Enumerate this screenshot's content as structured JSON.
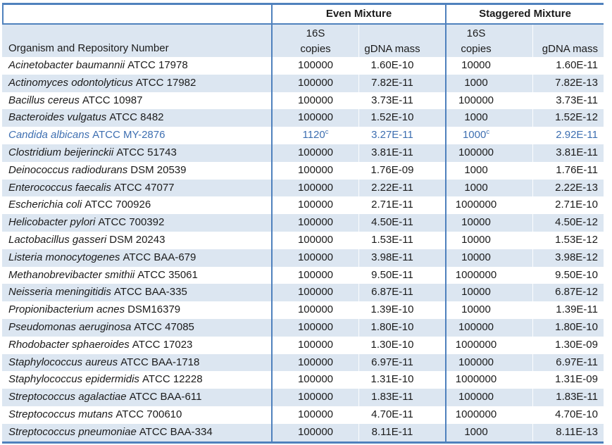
{
  "table": {
    "groups": [
      {
        "label": "Even Mixture"
      },
      {
        "label": "Staggered Mixture"
      }
    ],
    "subheaders": {
      "organism": "Organism and Repository Number",
      "copies_top": "16S",
      "copies_bottom": "copies",
      "gdna": "gDNA mass"
    },
    "colors": {
      "border_blue": "#4F81BD",
      "stripe_blue": "#DCE6F1",
      "highlight_text_blue": "#3E6FB1"
    },
    "rows": [
      {
        "name": "Acinetobacter baumannii",
        "id": "ATCC 17978",
        "even_copies": "100000",
        "even_gdna": "1.60E-10",
        "stag_copies": "10000",
        "stag_gdna": "1.60E-11"
      },
      {
        "name": "Actinomyces odontolyticus",
        "id": "ATCC 17982",
        "even_copies": "100000",
        "even_gdna": "7.82E-11",
        "stag_copies": "1000",
        "stag_gdna": "7.82E-13"
      },
      {
        "name": "Bacillus cereus",
        "id": "ATCC 10987",
        "even_copies": "100000",
        "even_gdna": "3.73E-11",
        "stag_copies": "100000",
        "stag_gdna": "3.73E-11"
      },
      {
        "name": "Bacteroides vulgatus",
        "id": "ATCC 8482",
        "even_copies": "100000",
        "even_gdna": "1.52E-10",
        "stag_copies": "1000",
        "stag_gdna": "1.52E-12"
      },
      {
        "name": "Candida albicans",
        "id": "ATCC MY-2876",
        "even_copies": "1120",
        "even_copies_note": "c",
        "even_gdna": "3.27E-11",
        "stag_copies": "1000",
        "stag_copies_note": "c",
        "stag_gdna": "2.92E-11",
        "highlight": true
      },
      {
        "name": "Clostridium beijerinckii",
        "id": "ATCC 51743",
        "even_copies": "100000",
        "even_gdna": "3.81E-11",
        "stag_copies": "100000",
        "stag_gdna": "3.81E-11"
      },
      {
        "name": "Deinococcus radiodurans",
        "id": "DSM 20539",
        "even_copies": "100000",
        "even_gdna": "1.76E-09",
        "stag_copies": "1000",
        "stag_gdna": "1.76E-11"
      },
      {
        "name": "Enterococcus faecalis",
        "id": "ATCC 47077",
        "even_copies": "100000",
        "even_gdna": "2.22E-11",
        "stag_copies": "1000",
        "stag_gdna": "2.22E-13"
      },
      {
        "name": "Escherichia coli",
        "id": "ATCC 700926",
        "even_copies": "100000",
        "even_gdna": "2.71E-11",
        "stag_copies": "1000000",
        "stag_gdna": "2.71E-10"
      },
      {
        "name": "Helicobacter pylori",
        "id": "ATCC 700392",
        "even_copies": "100000",
        "even_gdna": "4.50E-11",
        "stag_copies": "10000",
        "stag_gdna": "4.50E-12"
      },
      {
        "name": "Lactobacillus gasseri",
        "id": "DSM 20243",
        "even_copies": "100000",
        "even_gdna": "1.53E-11",
        "stag_copies": "10000",
        "stag_gdna": "1.53E-12"
      },
      {
        "name": "Listeria monocytogenes",
        "id": "ATCC BAA-679",
        "even_copies": "100000",
        "even_gdna": "3.98E-11",
        "stag_copies": "10000",
        "stag_gdna": "3.98E-12"
      },
      {
        "name": "Methanobrevibacter smithii",
        "id": "ATCC 35061",
        "even_copies": "100000",
        "even_gdna": "9.50E-11",
        "stag_copies": "1000000",
        "stag_gdna": "9.50E-10"
      },
      {
        "name": "Neisseria meningitidis",
        "id": "ATCC BAA-335",
        "even_copies": "100000",
        "even_gdna": "6.87E-11",
        "stag_copies": "10000",
        "stag_gdna": "6.87E-12"
      },
      {
        "name": "Propionibacterium acnes",
        "id": "DSM16379",
        "even_copies": "100000",
        "even_gdna": "1.39E-10",
        "stag_copies": "10000",
        "stag_gdna": "1.39E-11"
      },
      {
        "name": "Pseudomonas aeruginosa",
        "id": "ATCC 47085",
        "even_copies": "100000",
        "even_gdna": "1.80E-10",
        "stag_copies": "100000",
        "stag_gdna": "1.80E-10"
      },
      {
        "name": "Rhodobacter sphaeroides",
        "id": "ATCC 17023",
        "even_copies": "100000",
        "even_gdna": "1.30E-10",
        "stag_copies": "1000000",
        "stag_gdna": "1.30E-09"
      },
      {
        "name": "Staphylococcus aureus",
        "id": "ATCC BAA-1718",
        "even_copies": "100000",
        "even_gdna": "6.97E-11",
        "stag_copies": "100000",
        "stag_gdna": "6.97E-11"
      },
      {
        "name": "Staphylococcus epidermidis",
        "id": "ATCC 12228",
        "even_copies": "100000",
        "even_gdna": "1.31E-10",
        "stag_copies": "1000000",
        "stag_gdna": "1.31E-09"
      },
      {
        "name": "Streptococcus agalactiae",
        "id": "ATCC BAA-611",
        "even_copies": "100000",
        "even_gdna": "1.83E-11",
        "stag_copies": "100000",
        "stag_gdna": "1.83E-11"
      },
      {
        "name": "Streptococcus mutans",
        "id": "ATCC 700610",
        "even_copies": "100000",
        "even_gdna": "4.70E-11",
        "stag_copies": "1000000",
        "stag_gdna": "4.70E-10"
      },
      {
        "name": "Streptococcus pneumoniae",
        "id": "ATCC BAA-334",
        "even_copies": "100000",
        "even_gdna": "8.11E-11",
        "stag_copies": "1000",
        "stag_gdna": "8.11E-13"
      }
    ]
  }
}
